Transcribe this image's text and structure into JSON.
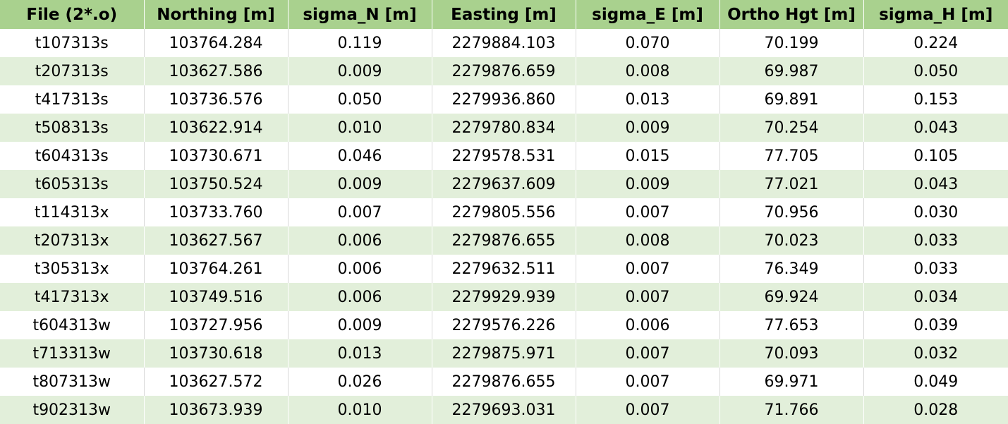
{
  "table": {
    "headers": [
      "File (2*.o)",
      "Northing [m]",
      "sigma_N [m]",
      "Easting [m]",
      "sigma_E [m]",
      "Ortho Hgt [m]",
      "sigma_H [m]"
    ],
    "rows": [
      [
        "t107313s",
        "103764.284",
        "0.119",
        "2279884.103",
        "0.070",
        "70.199",
        "0.224"
      ],
      [
        "t207313s",
        "103627.586",
        "0.009",
        "2279876.659",
        "0.008",
        "69.987",
        "0.050"
      ],
      [
        "t417313s",
        "103736.576",
        "0.050",
        "2279936.860",
        "0.013",
        "69.891",
        "0.153"
      ],
      [
        "t508313s",
        "103622.914",
        "0.010",
        "2279780.834",
        "0.009",
        "70.254",
        "0.043"
      ],
      [
        "t604313s",
        "103730.671",
        "0.046",
        "2279578.531",
        "0.015",
        "77.705",
        "0.105"
      ],
      [
        "t605313s",
        "103750.524",
        "0.009",
        "2279637.609",
        "0.009",
        "77.021",
        "0.043"
      ],
      [
        "t114313x",
        "103733.760",
        "0.007",
        "2279805.556",
        "0.007",
        "70.956",
        "0.030"
      ],
      [
        "t207313x",
        "103627.567",
        "0.006",
        "2279876.655",
        "0.008",
        "70.023",
        "0.033"
      ],
      [
        "t305313x",
        "103764.261",
        "0.006",
        "2279632.511",
        "0.007",
        "76.349",
        "0.033"
      ],
      [
        "t417313x",
        "103749.516",
        "0.006",
        "2279929.939",
        "0.007",
        "69.924",
        "0.034"
      ],
      [
        "t604313w",
        "103727.956",
        "0.009",
        "2279576.226",
        "0.006",
        "77.653",
        "0.039"
      ],
      [
        "t713313w",
        "103730.618",
        "0.013",
        "2279875.971",
        "0.007",
        "70.093",
        "0.032"
      ],
      [
        "t807313w",
        "103627.572",
        "0.026",
        "2279876.655",
        "0.007",
        "69.971",
        "0.049"
      ],
      [
        "t902313w",
        "103673.939",
        "0.010",
        "2279693.031",
        "0.007",
        "71.766",
        "0.028"
      ]
    ]
  },
  "colors": {
    "header_bg": "#a9d18e",
    "band_bg": "#e2efda",
    "row_bg": "#ffffff"
  }
}
